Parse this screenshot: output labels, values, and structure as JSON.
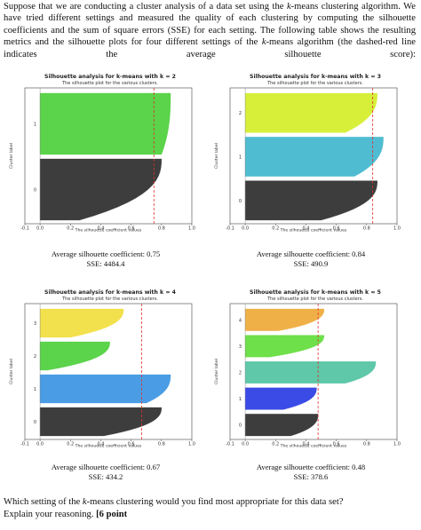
{
  "intro": {
    "p1": "Suppose that we are conducting a cluster analysis of a data set using the ",
    "k1": "k",
    "p2": "-means clustering algorithm. We have tried different settings and measured the quality of each clustering by computing the silhouette coefficients and the sum of square errors (SSE) for each setting. The following table shows the resulting metrics and the silhouette plots for four different settings of the ",
    "k2": "k",
    "p3": "-means algorithm (the dashed-red line indicates the average silhouette score):"
  },
  "chart_data": [
    {
      "type": "area",
      "title": "Silhouette analysis for k-means with k = 2",
      "subtitle": "The silhouette plot for the various clusters.",
      "xlabel": "The silhouette coefficient values",
      "ylabel": "Cluster label",
      "xlim": [
        -0.1,
        1.0
      ],
      "xticks": [
        "-0.1",
        "0.0",
        "0.2",
        "0.4",
        "0.6",
        "0.8",
        "1.0"
      ],
      "average_line": 0.75,
      "clusters": [
        {
          "label": "0",
          "color": "#3d3d3d",
          "max_value": 0.8,
          "min_value": 0.26
        },
        {
          "label": "1",
          "color": "#5bd34a",
          "max_value": 0.86,
          "min_value": 0.8
        }
      ],
      "caption_coef": "Average silhouette coefficient: 0.75",
      "caption_sse": "SSE: 4484.4"
    },
    {
      "type": "area",
      "title": "Silhouette analysis for k-means with k = 3",
      "subtitle": "The silhouette plot for the various clusters.",
      "xlabel": "The silhouette coefficient values",
      "ylabel": "Cluster label",
      "xlim": [
        -0.1,
        1.0
      ],
      "xticks": [
        "-0.1",
        "0.0",
        "0.2",
        "0.4",
        "0.6",
        "0.8",
        "1.0"
      ],
      "average_line": 0.84,
      "clusters": [
        {
          "label": "0",
          "color": "#3d3d3d",
          "max_value": 0.87,
          "min_value": 0.5
        },
        {
          "label": "1",
          "color": "#4fbcd1",
          "max_value": 0.91,
          "min_value": 0.72
        },
        {
          "label": "2",
          "color": "#d8ef3a",
          "max_value": 0.87,
          "min_value": 0.66
        }
      ],
      "caption_coef": "Average silhouette coefficient: 0.84",
      "caption_sse": "SSE: 490.9"
    },
    {
      "type": "area",
      "title": "Silhouette analysis for k-means with k = 4",
      "subtitle": "The silhouette plot for the various clusters.",
      "xlabel": "The silhouette coefficient values",
      "ylabel": "Cluster label",
      "xlim": [
        -0.1,
        1.0
      ],
      "xticks": [
        "-0.1",
        "0.0",
        "0.2",
        "0.4",
        "0.6",
        "0.8",
        "1.0"
      ],
      "average_line": 0.67,
      "clusters": [
        {
          "label": "0",
          "color": "#3d3d3d",
          "max_value": 0.8,
          "min_value": 0.42
        },
        {
          "label": "1",
          "color": "#4a9de4",
          "max_value": 0.86,
          "min_value": 0.7
        },
        {
          "label": "2",
          "color": "#5bd34a",
          "max_value": 0.46,
          "min_value": 0.05
        },
        {
          "label": "3",
          "color": "#f2e14c",
          "max_value": 0.55,
          "min_value": 0.2
        }
      ],
      "caption_coef": "Average silhouette coefficient: 0.67",
      "caption_sse": "SSE: 434.2"
    },
    {
      "type": "area",
      "title": "Silhouette analysis for k-means with k = 5",
      "subtitle": "The silhouette plot for the various clusters.",
      "xlabel": "The silhouette coefficient values",
      "ylabel": "Cluster label",
      "xlim": [
        -0.1,
        1.0
      ],
      "xticks": [
        "-0.1",
        "0.0",
        "0.2",
        "0.4",
        "0.6",
        "0.8",
        "1.0"
      ],
      "average_line": 0.48,
      "clusters": [
        {
          "label": "0",
          "color": "#3d3d3d",
          "max_value": 0.48,
          "min_value": 0.3
        },
        {
          "label": "1",
          "color": "#3b4be6",
          "max_value": 0.47,
          "min_value": 0.25
        },
        {
          "label": "2",
          "color": "#5ec8a8",
          "max_value": 0.86,
          "min_value": 0.66
        },
        {
          "label": "3",
          "color": "#6ee04a",
          "max_value": 0.52,
          "min_value": 0.16
        },
        {
          "label": "4",
          "color": "#f0b048",
          "max_value": 0.52,
          "min_value": 0.22
        }
      ],
      "caption_coef": "Average silhouette coefficient: 0.48",
      "caption_sse": "SSE: 378.6"
    }
  ],
  "question": {
    "q1": "Which setting of the ",
    "k": "k",
    "q2": "-means clustering would you find most appropriate for this data set?",
    "q3": "Explain your reasoning. ",
    "points": "[6 point"
  }
}
